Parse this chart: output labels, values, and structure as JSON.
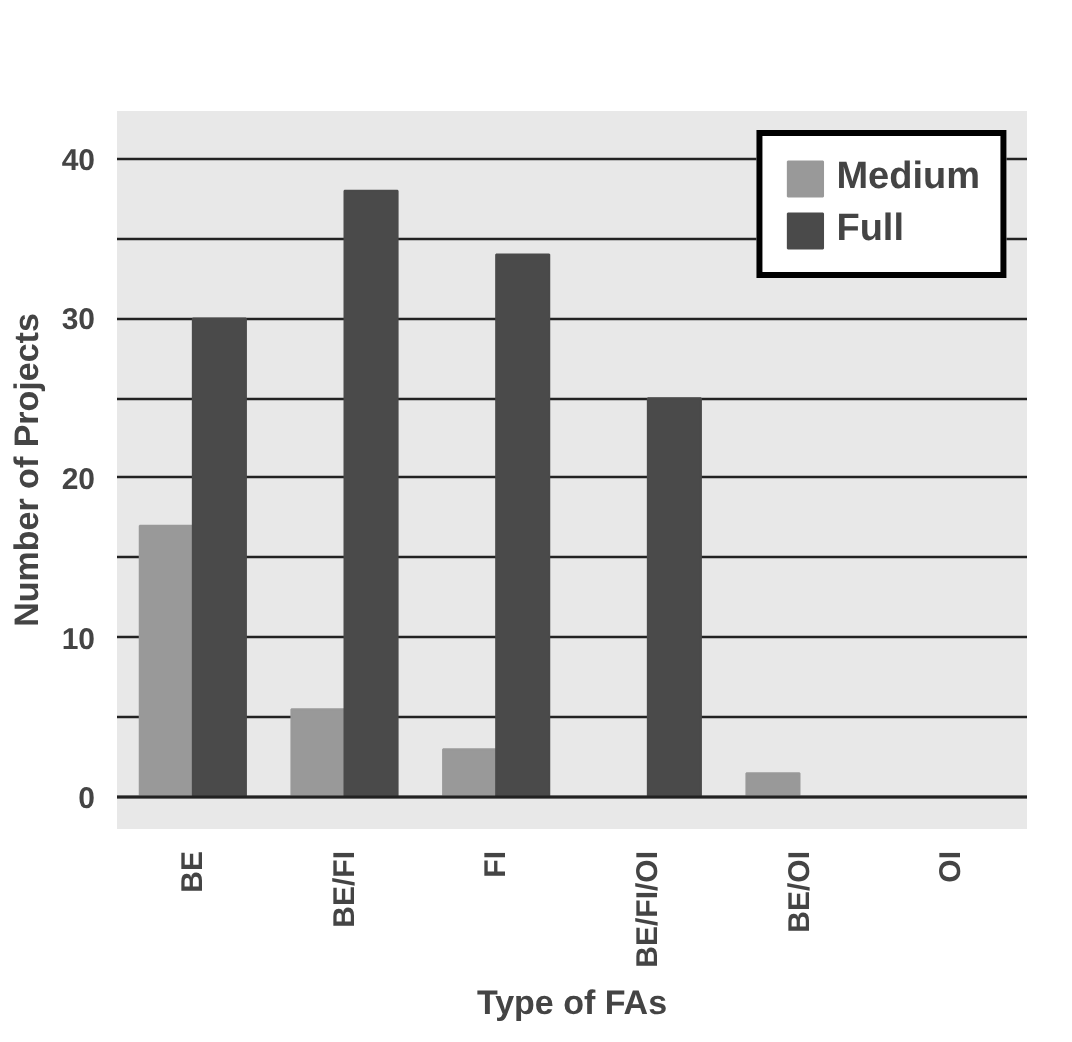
{
  "chart_data": {
    "type": "bar",
    "xlabel": "Type of FAs",
    "ylabel": "Number of Projects",
    "categories": [
      "BE",
      "BE/FI",
      "FI",
      "BE/FI/OI",
      "BE/OI",
      "OI"
    ],
    "series": [
      {
        "name": "Medium",
        "color": "#999999",
        "values": [
          17,
          5.5,
          3,
          0,
          1.5,
          0
        ]
      },
      {
        "name": "Full",
        "color": "#4a4a4a",
        "values": [
          30,
          38,
          34,
          25,
          null,
          null
        ]
      }
    ],
    "ylim": [
      -2,
      43
    ],
    "yticks": [
      0,
      {
        "value": 5,
        "label": null
      },
      10,
      {
        "value": 15,
        "label": null
      },
      20,
      {
        "value": 25,
        "label": null
      },
      30,
      {
        "value": 35,
        "label": null
      },
      40
    ],
    "grid": "y",
    "legend": "top right"
  }
}
